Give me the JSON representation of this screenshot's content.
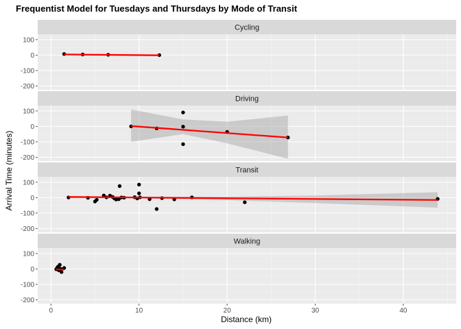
{
  "chart_data": {
    "type": "scatter",
    "title": "Frequentist Model for Tuesdays and Thursdays by Mode of Transit",
    "xlabel": "Distance (km)",
    "ylabel": "Arrival Time (minutes)",
    "xlim": [
      -1.5,
      46
    ],
    "ylim": [
      -225,
      135
    ],
    "x_ticks": [
      0,
      10,
      20,
      30,
      40
    ],
    "y_ticks": [
      -200,
      -100,
      0,
      100
    ],
    "grid": true,
    "point_color": "#000000",
    "fit_color": "#ff0000",
    "band_color": "#999999",
    "panels": [
      {
        "name": "Cycling",
        "points": [
          [
            1.5,
            7
          ],
          [
            3.6,
            4
          ],
          [
            6.5,
            2
          ],
          [
            12.3,
            0
          ]
        ],
        "fit": {
          "x": [
            1.5,
            12.3
          ],
          "y": [
            4.5,
            -1.5
          ]
        },
        "band": null
      },
      {
        "name": "Driving",
        "points": [
          [
            9.1,
            0
          ],
          [
            12.0,
            -13
          ],
          [
            15.0,
            90
          ],
          [
            15.0,
            -2
          ],
          [
            15.0,
            -115
          ],
          [
            20.0,
            -36
          ],
          [
            26.9,
            -72
          ]
        ],
        "fit": {
          "x": [
            9.1,
            26.9
          ],
          "y": [
            2,
            -72
          ]
        },
        "band": {
          "x": [
            9.1,
            15,
            20,
            26.9
          ],
          "upper": [
            110,
            45,
            30,
            70
          ],
          "lower": [
            -100,
            -50,
            -110,
            -210
          ]
        }
      },
      {
        "name": "Transit",
        "points": [
          [
            2.0,
            1
          ],
          [
            4.2,
            -1
          ],
          [
            5.0,
            -25
          ],
          [
            5.2,
            -14
          ],
          [
            6.0,
            14
          ],
          [
            6.3,
            2
          ],
          [
            6.7,
            13
          ],
          [
            7.0,
            5
          ],
          [
            7.2,
            -5
          ],
          [
            7.4,
            -12
          ],
          [
            7.7,
            -10
          ],
          [
            7.8,
            75
          ],
          [
            8.0,
            1
          ],
          [
            8.3,
            0
          ],
          [
            9.5,
            3
          ],
          [
            9.8,
            -5
          ],
          [
            10.0,
            85
          ],
          [
            10.0,
            28
          ],
          [
            10.1,
            2
          ],
          [
            11.2,
            -10
          ],
          [
            12.0,
            -74
          ],
          [
            12.6,
            -3
          ],
          [
            14.0,
            -11
          ],
          [
            16.0,
            2
          ],
          [
            22.0,
            -30
          ],
          [
            43.9,
            -8
          ]
        ],
        "fit": {
          "x": [
            2.0,
            43.9
          ],
          "y": [
            5,
            -15
          ]
        },
        "band": {
          "x": [
            2,
            5,
            10,
            20,
            30,
            43.9
          ],
          "upper": [
            9,
            7,
            5,
            6,
            14,
            35
          ],
          "lower": [
            -3,
            -2,
            -3,
            -16,
            -35,
            -65
          ]
        }
      },
      {
        "name": "Walking",
        "points": [
          [
            0.6,
            -2
          ],
          [
            0.7,
            7
          ],
          [
            0.8,
            14
          ],
          [
            0.9,
            -9
          ],
          [
            1.0,
            27
          ],
          [
            1.1,
            1
          ],
          [
            1.2,
            -20
          ],
          [
            1.5,
            6
          ]
        ],
        "fit": {
          "x": [
            0.6,
            1.5
          ],
          "y": [
            -2,
            -5
          ]
        },
        "band": null
      }
    ]
  }
}
